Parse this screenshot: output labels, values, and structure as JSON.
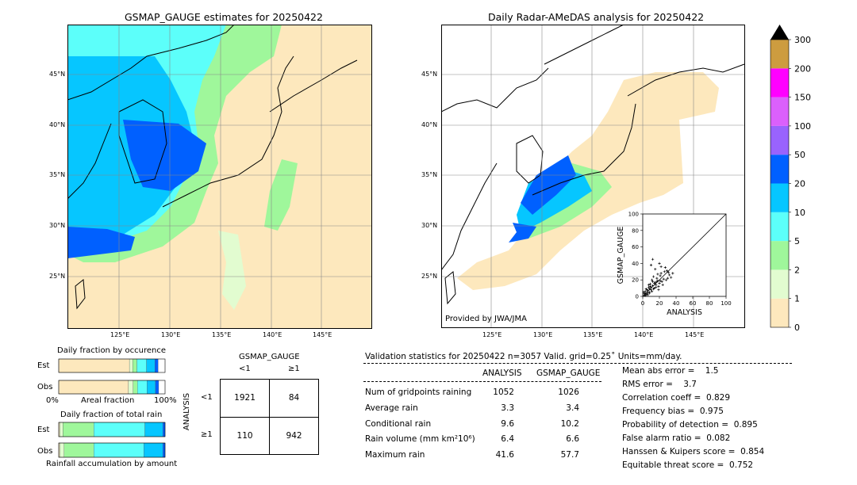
{
  "left_map": {
    "title": "GSMAP_GAUGE estimates for 20250422"
  },
  "right_map": {
    "title": "Daily Radar-AMeDAS analysis for 20250422",
    "credit": "Provided by JWA/JMA"
  },
  "map_axes": {
    "lat_labels": [
      "45°N",
      "40°N",
      "35°N",
      "30°N",
      "25°N"
    ],
    "lon_labels": [
      "125°E",
      "130°E",
      "135°E",
      "140°E",
      "145°E"
    ]
  },
  "colorbar": {
    "labels": [
      "0",
      "1",
      "2",
      "5",
      "10",
      "20",
      "50",
      "100",
      "150",
      "200",
      "300"
    ],
    "colors": [
      "#fde8bd",
      "#e2fcd0",
      "#9ff79b",
      "#5cfffa",
      "#06c6ff",
      "#0060ff",
      "#9963fd",
      "#db60fc",
      "#ff00ff",
      "#cd9c3f"
    ],
    "extend_color": "#000000"
  },
  "fraction_occurrence": {
    "title": "Daily fraction by occurence",
    "rows": [
      "Est",
      "Obs"
    ],
    "xlabel_left": "0%",
    "xlabel_mid": "Areal fraction",
    "xlabel_right": "100%"
  },
  "fraction_rain": {
    "title": "Daily fraction of total rain",
    "rows": [
      "Est",
      "Obs"
    ],
    "xlabel": "Rainfall accumulation by amount"
  },
  "contingency": {
    "col_title": "GSMAP_GAUGE",
    "col_labels": [
      "<1",
      "≥1"
    ],
    "row_title": "ANALYSIS",
    "row_labels": [
      "<1",
      "≥1"
    ],
    "cells": [
      [
        "1921",
        "84"
      ],
      [
        "110",
        "942"
      ]
    ]
  },
  "validation": {
    "header": "Validation statistics for 20250422  n=3057 Valid. grid=0.25˚ Units=mm/day.",
    "col1": "ANALYSIS",
    "col2": "GSMAP_GAUGE",
    "rows": [
      {
        "label": "Num of gridpoints raining",
        "a": "1052",
        "b": "1026"
      },
      {
        "label": "Average rain",
        "a": "3.3",
        "b": "3.4"
      },
      {
        "label": "Conditional rain",
        "a": "9.6",
        "b": "10.2"
      },
      {
        "label": "Rain volume (mm km²10⁶)",
        "a": "6.4",
        "b": "6.6"
      },
      {
        "label": "Maximum rain",
        "a": "41.6",
        "b": "57.7"
      }
    ],
    "scores": [
      "Mean abs error =    1.5",
      "RMS error =    3.7",
      "Correlation coeff =  0.829",
      "Frequency bias =  0.975",
      "Probability of detection =  0.895",
      "False alarm ratio =  0.082",
      "Hanssen & Kuipers score =  0.854",
      "Equitable threat score =  0.752"
    ]
  },
  "chart_data": [
    {
      "type": "scatter",
      "xlabel": "ANALYSIS",
      "ylabel": "GSMAP_GAUGE",
      "xlim": [
        0,
        100
      ],
      "ylim": [
        0,
        100
      ],
      "ticks": [
        0,
        20,
        40,
        60,
        80,
        100
      ],
      "diagonal": true,
      "points": [
        [
          2,
          1
        ],
        [
          3,
          4
        ],
        [
          5,
          3
        ],
        [
          6,
          7
        ],
        [
          8,
          5
        ],
        [
          4,
          9
        ],
        [
          7,
          11
        ],
        [
          10,
          8
        ],
        [
          12,
          13
        ],
        [
          9,
          15
        ],
        [
          14,
          10
        ],
        [
          15,
          17
        ],
        [
          11,
          20
        ],
        [
          16,
          14
        ],
        [
          18,
          19
        ],
        [
          20,
          16
        ],
        [
          13,
          24
        ],
        [
          17,
          22
        ],
        [
          19,
          12
        ],
        [
          21,
          25
        ],
        [
          23,
          18
        ],
        [
          25,
          21
        ],
        [
          22,
          28
        ],
        [
          24,
          14
        ],
        [
          26,
          30
        ],
        [
          28,
          20
        ],
        [
          15,
          33
        ],
        [
          30,
          22
        ],
        [
          18,
          27
        ],
        [
          27,
          35
        ],
        [
          32,
          26
        ],
        [
          10,
          38
        ],
        [
          20,
          40
        ],
        [
          29,
          31
        ],
        [
          34,
          23
        ],
        [
          12,
          45
        ],
        [
          22,
          36
        ],
        [
          31,
          29
        ],
        [
          36,
          28
        ],
        [
          8,
          4
        ],
        [
          6,
          2
        ],
        [
          3,
          6
        ],
        [
          5,
          8
        ],
        [
          9,
          12
        ],
        [
          11,
          6
        ],
        [
          13,
          9
        ],
        [
          16,
          11
        ],
        [
          19,
          8
        ],
        [
          7,
          14
        ],
        [
          12,
          18
        ],
        [
          2,
          3
        ],
        [
          4,
          2
        ],
        [
          1,
          5
        ],
        [
          3,
          1
        ],
        [
          6,
          5
        ],
        [
          8,
          9
        ],
        [
          10,
          11
        ],
        [
          14,
          16
        ],
        [
          17,
          18
        ],
        [
          21,
          19
        ]
      ]
    },
    {
      "type": "bar",
      "title": "Daily fraction by occurence",
      "series": [
        {
          "name": "Est",
          "values": [
            0.665,
            0.03,
            0.04,
            0.09,
            0.08,
            0.03
          ]
        },
        {
          "name": "Obs",
          "values": [
            0.656,
            0.044,
            0.04,
            0.09,
            0.08,
            0.03
          ]
        }
      ]
    },
    {
      "type": "bar",
      "title": "Daily fraction of total rain",
      "series": [
        {
          "name": "Est",
          "values": [
            0.01,
            0.03,
            0.29,
            0.48,
            0.17,
            0.02
          ]
        },
        {
          "name": "Obs",
          "values": [
            0.01,
            0.04,
            0.28,
            0.47,
            0.18,
            0.02
          ]
        }
      ]
    }
  ]
}
